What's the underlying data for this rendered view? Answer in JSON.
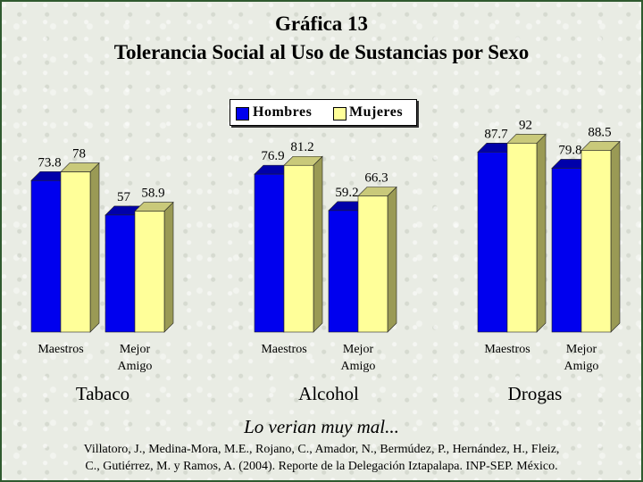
{
  "title": "Gráfica 13",
  "subtitle": "Tolerancia Social al Uso de Sustancias por Sexo",
  "caption": "Lo verian muy mal...",
  "reference_line1": "Villatoro, J., Medina-Mora, M.E., Rojano, C., Amador, N., Bermúdez, P., Hernández, H., Fleiz,",
  "reference_line2": "C., Gutiérrez, M. y Ramos, A. (2004). Reporte de la Delegación Iztapalapa. INP-SEP. México.",
  "colors": {
    "hombres": "#0000ee",
    "mujeres": "#ffff99"
  },
  "chart_data": {
    "type": "bar",
    "title": "Tolerancia Social al Uso de Sustancias por Sexo",
    "groups": [
      "Tabaco",
      "Alcohol",
      "Drogas"
    ],
    "categories": [
      [
        "Maestros",
        "Mejor Amigo"
      ],
      [
        "Maestros",
        "Mejor Amigo"
      ],
      [
        "Maestros",
        "Mejor Amigo"
      ]
    ],
    "category_lines": [
      [
        "Maestros"
      ],
      [
        "Mejor",
        "Amigo"
      ]
    ],
    "series": [
      {
        "name": "Hombres",
        "values": [
          [
            73.8,
            57
          ],
          [
            76.9,
            59.2
          ],
          [
            87.7,
            79.8
          ]
        ]
      },
      {
        "name": "Mujeres",
        "values": [
          [
            78,
            58.9
          ],
          [
            81.2,
            66.3
          ],
          [
            92,
            88.5
          ]
        ]
      }
    ],
    "ylim": [
      0,
      100
    ],
    "grid": false,
    "legend": "top-center"
  }
}
